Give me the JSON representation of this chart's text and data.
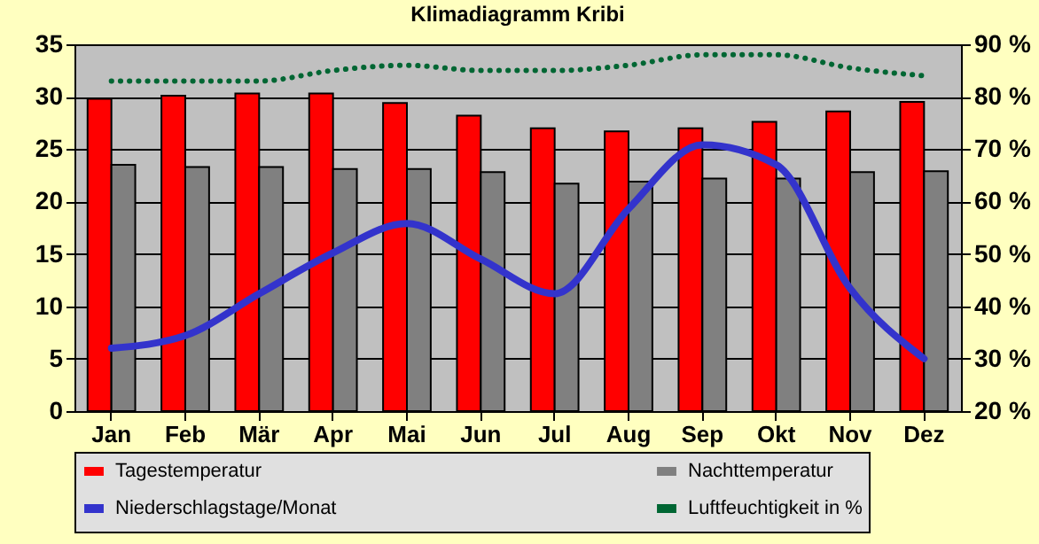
{
  "chart_data": {
    "type": "bar",
    "title": "Klimadiagramm Kribi",
    "categories": [
      "Jan",
      "Feb",
      "Mär",
      "Apr",
      "Mai",
      "Jun",
      "Jul",
      "Aug",
      "Sep",
      "Okt",
      "Nov",
      "Dez"
    ],
    "series": [
      {
        "name": "Tagestemperatur",
        "color": "#ff0000",
        "values": [
          29.8,
          30.1,
          30.3,
          30.3,
          29.4,
          28.2,
          27.0,
          26.7,
          27.0,
          27.6,
          28.6,
          29.5
        ]
      },
      {
        "name": "Nachttemperatur",
        "color": "#808080",
        "values": [
          23.5,
          23.3,
          23.3,
          23.1,
          23.1,
          22.8,
          21.7,
          21.9,
          22.2,
          22.2,
          22.8,
          22.9
        ]
      },
      {
        "name": "Niederschlagstage/Monat",
        "type": "line",
        "color": "#3333cc",
        "line_style": "solid",
        "values": [
          6.0,
          7.2,
          11.2,
          15.1,
          17.9,
          14.5,
          11.2,
          19.3,
          25.4,
          23.5,
          11.7,
          5.0
        ]
      },
      {
        "name": "Luftfeuchtigkeit in %",
        "type": "line",
        "axis": "y2",
        "color": "#006633",
        "line_style": "dotted",
        "values": [
          83,
          83,
          83,
          85,
          86,
          85,
          85,
          86,
          88,
          88,
          85.5,
          84
        ]
      }
    ],
    "ylim": [
      0,
      35
    ],
    "yticks": [
      0,
      5,
      10,
      15,
      20,
      25,
      30,
      35
    ],
    "y2lim": [
      20,
      90
    ],
    "y2ticks": [
      {
        "value": 20,
        "label": "20 %"
      },
      {
        "value": 30,
        "label": "30 %"
      },
      {
        "value": 40,
        "label": "40 %"
      },
      {
        "value": 50,
        "label": "50 %"
      },
      {
        "value": 60,
        "label": "60 %"
      },
      {
        "value": 70,
        "label": "70 %"
      },
      {
        "value": 80,
        "label": "80 %"
      },
      {
        "value": 90,
        "label": "90 %"
      }
    ],
    "grid": "y",
    "legend": "bottom",
    "marker": "none"
  }
}
